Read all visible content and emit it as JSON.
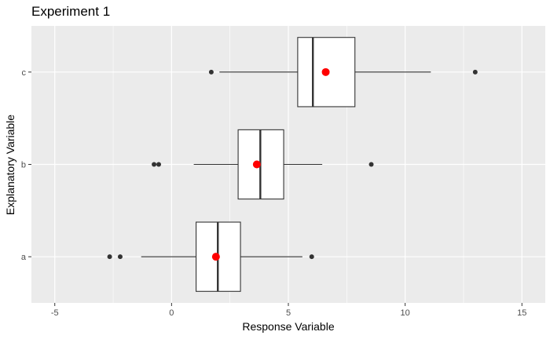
{
  "chart_data": {
    "type": "boxplot",
    "orientation": "horizontal",
    "title": "Experiment 1",
    "xlabel": "Response Variable",
    "ylabel": "Explanatory Variable",
    "xlim": [
      -6,
      16
    ],
    "x_ticks": [
      -5,
      0,
      5,
      10,
      15
    ],
    "x_tick_labels": [
      "-5",
      "0",
      "5",
      "10",
      "15"
    ],
    "categories": [
      "a",
      "b",
      "c"
    ],
    "grid": true,
    "panel_background": "#ebebeb",
    "grid_color": "#ffffff",
    "box_fill": "#ffffff",
    "box_stroke": "#333333",
    "outlier_color": "#333333",
    "mean_color": "#ff0000",
    "boxes": [
      {
        "category": "a",
        "whisker_low": -1.3,
        "q1": 1.05,
        "median": 1.98,
        "q3": 2.95,
        "whisker_high": 5.6,
        "mean": 1.9,
        "outliers": [
          -2.65,
          -2.2,
          6.0
        ]
      },
      {
        "category": "b",
        "whisker_low": 0.95,
        "q1": 2.85,
        "median": 3.8,
        "q3": 4.8,
        "whisker_high": 6.45,
        "mean": 3.65,
        "outliers": [
          -0.75,
          -0.55,
          8.55
        ]
      },
      {
        "category": "c",
        "whisker_low": 2.05,
        "q1": 5.4,
        "median": 6.05,
        "q3": 7.85,
        "whisker_high": 11.1,
        "mean": 6.6,
        "outliers": [
          1.7,
          13.0
        ]
      }
    ]
  }
}
